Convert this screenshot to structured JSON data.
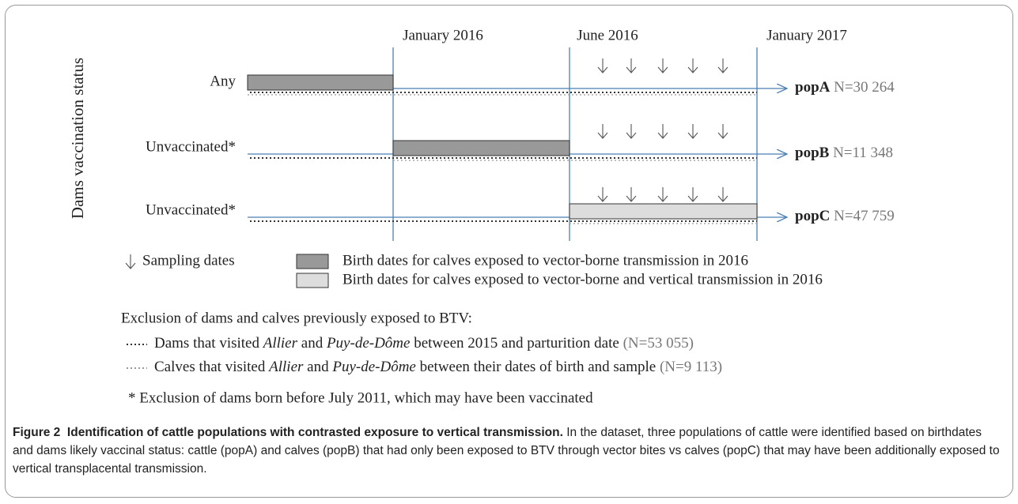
{
  "figure": {
    "y_axis_label": "Dams vaccination status",
    "timeline": [
      "January 2016",
      "June 2016",
      "January 2017"
    ],
    "rows": [
      {
        "status": "Any",
        "population": "popA",
        "count": "N=30 264"
      },
      {
        "status": "Unvaccinated*",
        "population": "popB",
        "count": "N=11 348"
      },
      {
        "status": "Unvaccinated*",
        "population": "popC",
        "count": "N=47 759"
      }
    ],
    "legend": {
      "sampling": "Sampling dates",
      "dark_bar": "Birth dates for calves exposed to vector-borne transmission in 2016",
      "light_bar": "Birth dates for calves exposed to vector-borne and vertical transmission in 2016"
    },
    "exclusion": {
      "title": "Exclusion of dams and calves previously exposed to BTV:",
      "items": [
        [
          "Dams that visited ",
          "Allier",
          " and ",
          "Puy-de-Dôme",
          " between 2015 and parturition date ",
          "(N=53 055)"
        ],
        [
          "Calves that visited ",
          "Allier",
          " and ",
          "Puy-de-Dôme",
          " between their dates of birth and sample ",
          "(N=9 113)"
        ]
      ]
    },
    "footnote": "* Exclusion of dams born before July 2011, which may have been vaccinated"
  },
  "caption": {
    "label": "Figure 2",
    "title": "Identification of cattle populations with contrasted exposure to vertical transmission.",
    "text": "In the dataset, three populations of cattle were identified based on birthdates and dams likely vaccinal status: cattle (popA) and calves (popB) that had only been exposed to BTV through vector bites vs calves (popC) that may have been additionally exposed to vertical transplacental transmission."
  }
}
